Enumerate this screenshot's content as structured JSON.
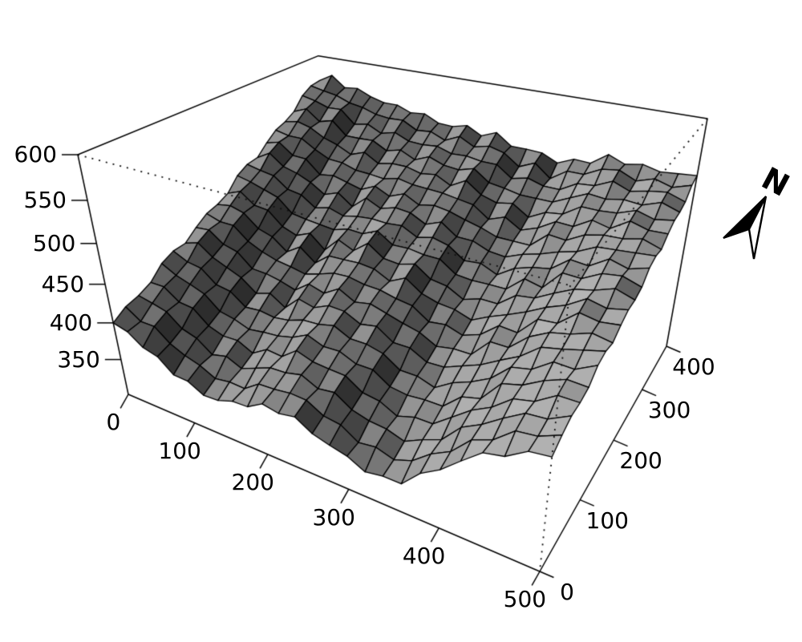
{
  "figure": {
    "kind": "3d-perspective-terrain-surface",
    "background": "#ffffff"
  },
  "compass": {
    "label": "N"
  },
  "chart_data": {
    "type": "surface",
    "title": "",
    "xlabel": "",
    "ylabel": "",
    "zlabel": "",
    "x": {
      "min": 0,
      "max": 500,
      "ticks": [
        0,
        100,
        200,
        300,
        400,
        500
      ],
      "grid_step": 20
    },
    "y": {
      "min": 0,
      "max": 400,
      "ticks": [
        0,
        100,
        200,
        300,
        400
      ],
      "grid_step": 20
    },
    "z": {
      "min": 300,
      "max": 600,
      "ticks": [
        350,
        400,
        450,
        500,
        550,
        600
      ]
    },
    "palette": {
      "light": "#b4b4b4",
      "mid": "#8a8a8a",
      "dark": "#3f3f3f",
      "mesh_line": "#000000",
      "box_line": "#000000"
    },
    "elevation_grid": [
      [
        400,
        395,
        381,
        376,
        359,
        358,
        347,
        348,
        355,
        356,
        368,
        364,
        368,
        355,
        349,
        344,
        333,
        337,
        337,
        360,
        374,
        394,
        413,
        418,
        433,
        436
      ],
      [
        410,
        397,
        397,
        381,
        372,
        366,
        356,
        359,
        358,
        372,
        373,
        376,
        375,
        363,
        360,
        346,
        349,
        342,
        350,
        368,
        380,
        403,
        412,
        431,
        434,
        444
      ],
      [
        414,
        410,
        405,
        389,
        383,
        368,
        373,
        364,
        372,
        380,
        381,
        386,
        376,
        379,
        365,
        359,
        357,
        350,
        361,
        370,
        394,
        406,
        422,
        436,
        438,
        450
      ],
      [
        421,
        421,
        407,
        405,
        388,
        381,
        382,
        372,
        384,
        382,
        397,
        390,
        388,
        387,
        373,
        370,
        359,
        366,
        366,
        383,
        400,
        412,
        430,
        435,
        450,
        450
      ],
      [
        436,
        426,
        420,
        413,
        396,
        392,
        385,
        388,
        390,
        395,
        405,
        397,
        398,
        389,
        389,
        375,
        372,
        374,
        374,
        394,
        400,
        426,
        432,
        445,
        454,
        453
      ],
      [
        443,
        434,
        431,
        415,
        412,
        397,
        399,
        396,
        399,
        406,
        407,
        412,
        402,
        402,
        397,
        383,
        383,
        376,
        390,
        399,
        411,
        432,
        437,
        453,
        452,
        464
      ],
      [
        444,
        450,
        436,
        428,
        420,
        405,
        411,
        398,
        416,
        411,
        420,
        419,
        409,
        413,
        399,
        399,
        388,
        389,
        398,
        407,
        420,
        432,
        450,
        455,
        461,
        467
      ],
      [
        456,
        458,
        444,
        439,
        422,
        421,
        417,
        411,
        425,
        419,
        431,
        420,
        424,
        418,
        412,
        407,
        396,
        400,
        400,
        423,
        423,
        443,
        455,
        460,
        468,
        464
      ],
      [
        466,
        460,
        460,
        444,
        435,
        429,
        426,
        422,
        428,
        435,
        436,
        432,
        431,
        426,
        423,
        409,
        412,
        405,
        413,
        431,
        429,
        452,
        454,
        473,
        469,
        472
      ],
      [
        470,
        473,
        468,
        452,
        446,
        431,
        443,
        427,
        442,
        443,
        444,
        442,
        432,
        442,
        428,
        422,
        420,
        413,
        424,
        433,
        443,
        455,
        464,
        478,
        473,
        478
      ],
      [
        477,
        484,
        470,
        468,
        451,
        444,
        452,
        435,
        454,
        445,
        460,
        446,
        444,
        450,
        436,
        433,
        422,
        429,
        429,
        446,
        449,
        461,
        472,
        477,
        485,
        478
      ],
      [
        493,
        489,
        483,
        477,
        460,
        457,
        455,
        453,
        459,
        458,
        467,
        454,
        455,
        452,
        452,
        438,
        436,
        437,
        437,
        456,
        451,
        475,
        474,
        486,
        489,
        482
      ],
      [
        501,
        497,
        494,
        480,
        477,
        464,
        469,
        463,
        467,
        469,
        468,
        470,
        460,
        465,
        460,
        446,
        448,
        439,
        453,
        460,
        464,
        481,
        479,
        493,
        487,
        494
      ],
      [
        503,
        513,
        499,
        494,
        486,
        474,
        481,
        467,
        483,
        474,
        480,
        478,
        468,
        476,
        462,
        462,
        454,
        452,
        461,
        467,
        475,
        481,
        492,
        494,
        496,
        498
      ],
      [
        516,
        521,
        507,
        506,
        489,
        492,
        487,
        482,
        491,
        482,
        490,
        480,
        484,
        481,
        475,
        470,
        463,
        463,
        463,
        482,
        480,
        492,
        497,
        498,
        503,
        496
      ],
      [
        527,
        523,
        523,
        512,
        503,
        502,
        496,
        495,
        493,
        498,
        494,
        493,
        492,
        489,
        486,
        472,
        480,
        468,
        476,
        489,
        488,
        501,
        496,
        510,
        504,
        505
      ],
      [
        532,
        536,
        531,
        521,
        515,
        506,
        513,
        502,
        506,
        506,
        501,
        504,
        494,
        505,
        491,
        485,
        489,
        476,
        487,
        490,
        504,
        504,
        506,
        514,
        508,
        512
      ],
      [
        540,
        547,
        533,
        538,
        521,
        521,
        522,
        512,
        517,
        508,
        516,
        509,
        507,
        513,
        499,
        496,
        492,
        492,
        492,
        502,
        512,
        510,
        514,
        512,
        520,
        513
      ],
      [
        556,
        552,
        546,
        547,
        530,
        534,
        525,
        530,
        522,
        521,
        523,
        517,
        518,
        515,
        515,
        501,
        506,
        500,
        500,
        512,
        514,
        524,
        516,
        521,
        524,
        517
      ],
      [
        564,
        560,
        557,
        550,
        547,
        541,
        539,
        540,
        530,
        532,
        524,
        533,
        523,
        528,
        523,
        509,
        518,
        502,
        516,
        516,
        527,
        530,
        521,
        528,
        522,
        529
      ],
      [
        566,
        576,
        562,
        564,
        556,
        551,
        551,
        544,
        546,
        537,
        536,
        541,
        531,
        539,
        525,
        525,
        524,
        515,
        524,
        523,
        538,
        530,
        534,
        529,
        531,
        533
      ]
    ]
  }
}
